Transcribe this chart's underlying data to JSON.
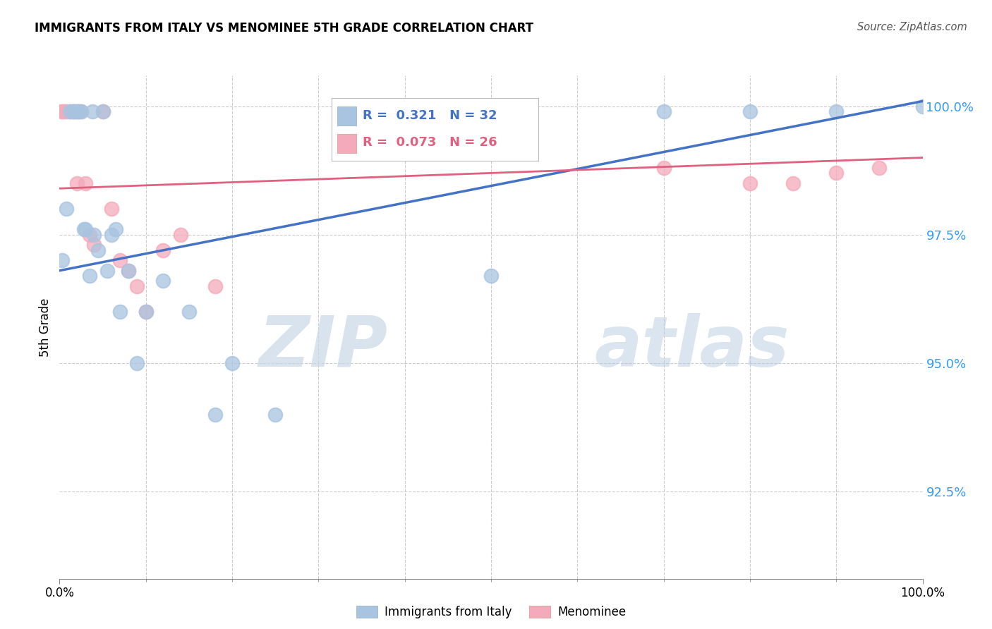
{
  "title": "IMMIGRANTS FROM ITALY VS MENOMINEE 5TH GRADE CORRELATION CHART",
  "source": "Source: ZipAtlas.com",
  "ylabel": "5th Grade",
  "y_tick_values": [
    0.925,
    0.95,
    0.975,
    1.0
  ],
  "xlim": [
    0.0,
    1.0
  ],
  "ylim": [
    0.908,
    1.006
  ],
  "legend_blue_r": "0.321",
  "legend_blue_n": "32",
  "legend_pink_r": "0.073",
  "legend_pink_n": "26",
  "blue_color": "#A8C4E0",
  "pink_color": "#F4AABA",
  "blue_line_color": "#4472C4",
  "pink_line_color": "#E06080",
  "blue_scatter_x": [
    0.003,
    0.008,
    0.012,
    0.015,
    0.018,
    0.02,
    0.022,
    0.025,
    0.028,
    0.03,
    0.035,
    0.038,
    0.04,
    0.045,
    0.05,
    0.055,
    0.06,
    0.065,
    0.07,
    0.08,
    0.09,
    0.1,
    0.12,
    0.15,
    0.18,
    0.2,
    0.25,
    0.5,
    0.7,
    0.8,
    0.9,
    1.0
  ],
  "blue_scatter_y": [
    0.97,
    0.98,
    0.999,
    0.999,
    0.999,
    0.999,
    0.999,
    0.999,
    0.976,
    0.976,
    0.967,
    0.999,
    0.975,
    0.972,
    0.999,
    0.968,
    0.975,
    0.976,
    0.96,
    0.968,
    0.95,
    0.96,
    0.966,
    0.96,
    0.94,
    0.95,
    0.94,
    0.967,
    0.999,
    0.999,
    0.999,
    1.0
  ],
  "pink_scatter_x": [
    0.002,
    0.005,
    0.008,
    0.012,
    0.015,
    0.018,
    0.02,
    0.022,
    0.025,
    0.03,
    0.035,
    0.04,
    0.05,
    0.06,
    0.07,
    0.08,
    0.09,
    0.1,
    0.12,
    0.14,
    0.18,
    0.7,
    0.8,
    0.85,
    0.9,
    0.95
  ],
  "pink_scatter_y": [
    0.999,
    0.999,
    0.999,
    0.999,
    0.999,
    0.999,
    0.985,
    0.999,
    0.999,
    0.985,
    0.975,
    0.973,
    0.999,
    0.98,
    0.97,
    0.968,
    0.965,
    0.96,
    0.972,
    0.975,
    0.965,
    0.988,
    0.985,
    0.985,
    0.987,
    0.988
  ],
  "blue_line_x0": 0.0,
  "blue_line_x1": 1.0,
  "blue_line_y0": 0.968,
  "blue_line_y1": 1.001,
  "pink_line_x0": 0.0,
  "pink_line_x1": 1.0,
  "pink_line_y0": 0.984,
  "pink_line_y1": 0.99,
  "watermark_zip": "ZIP",
  "watermark_atlas": "atlas",
  "grid_color": "#CCCCCC"
}
